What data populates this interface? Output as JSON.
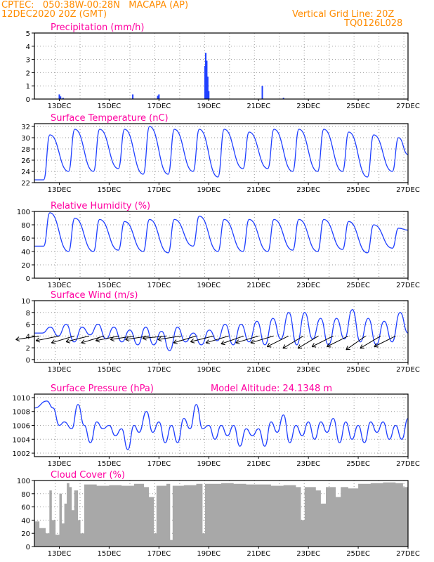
{
  "header": {
    "line1_left": "CPTEC:   050:38W-00:28N   MACAPA (AP)",
    "line2_left": "12DEC2020 20Z (GMT)",
    "line1_right": "Vertical Grid Line: 20Z",
    "line2_right": "TQ0126L028"
  },
  "colors": {
    "series": "#2040ff",
    "header": "#ff8c00",
    "title": "#ff00a0",
    "cloud": "#a8a8a8",
    "grid": "#9a9a9a"
  },
  "chart_data": [
    {
      "id": "precip",
      "type": "bar",
      "title": "Precipitation (mm/h)",
      "x_days": [
        "13DEC",
        "15DEC",
        "17DEC",
        "19DEC",
        "21DEC",
        "23DEC",
        "25DEC",
        "27DEC"
      ],
      "ylim": [
        0,
        5
      ],
      "yticks": [
        0,
        1,
        2,
        3,
        4,
        5
      ],
      "bars": [
        {
          "x": 13.0,
          "y": 0.35
        },
        {
          "x": 13.05,
          "y": 0.2
        },
        {
          "x": 13.15,
          "y": 0.1
        },
        {
          "x": 15.95,
          "y": 0.35
        },
        {
          "x": 16.95,
          "y": 0.25
        },
        {
          "x": 17.0,
          "y": 0.35
        },
        {
          "x": 18.85,
          "y": 2.5
        },
        {
          "x": 18.88,
          "y": 3.5
        },
        {
          "x": 18.92,
          "y": 2.9
        },
        {
          "x": 18.96,
          "y": 1.7
        },
        {
          "x": 19.0,
          "y": 0.6
        },
        {
          "x": 21.15,
          "y": 1.0
        },
        {
          "x": 22.0,
          "y": 0.1
        }
      ]
    },
    {
      "id": "temp",
      "type": "line",
      "title": "Surface Temperature (nC)",
      "ylim": [
        22,
        32.5
      ],
      "yticks": [
        22,
        24,
        26,
        28,
        30,
        32
      ],
      "day_max": [
        30.5,
        31.5,
        31.5,
        31.5,
        32.0,
        31.5,
        31.5,
        31.5,
        31.0,
        31.5,
        31.5,
        31.5,
        31.0,
        30.5,
        30.0
      ],
      "day_min": [
        22.5,
        24.0,
        24.0,
        24.5,
        23.5,
        23.5,
        24.0,
        23.0,
        24.5,
        24.5,
        24.0,
        24.0,
        24.0,
        23.0,
        24.0
      ]
    },
    {
      "id": "rh",
      "type": "line",
      "title": "Relative Humidity (%)",
      "ylim": [
        0,
        100
      ],
      "yticks": [
        0,
        20,
        40,
        60,
        80,
        100
      ],
      "day_max": [
        98,
        90,
        88,
        85,
        88,
        88,
        93,
        88,
        88,
        88,
        88,
        88,
        85,
        80,
        75
      ],
      "day_min": [
        48,
        40,
        40,
        42,
        40,
        38,
        48,
        40,
        40,
        40,
        42,
        40,
        43,
        38,
        45
      ]
    },
    {
      "id": "wind",
      "type": "line",
      "title": "Surface Wind (m/s)",
      "ylim": [
        -0.5,
        10
      ],
      "yticks": [
        0,
        2,
        4,
        6,
        8,
        10
      ],
      "speed": [
        4.5,
        4.5,
        5.5,
        4.0,
        6.0,
        3.0,
        5.5,
        4.2,
        6.0,
        3.5,
        5.5,
        3.0,
        5.0,
        2.5,
        5.5,
        2.5,
        4.8,
        1.5,
        5.5,
        3.0,
        4.5,
        2.5,
        5.0,
        3.2,
        6.0,
        2.5,
        6.0,
        3.0,
        6.5,
        2.5,
        7.0,
        3.5,
        8.0,
        2.5,
        8.0,
        3.5,
        7.0,
        2.5,
        7.0,
        3.5,
        8.5,
        3.0,
        7.0,
        2.5,
        6.5,
        3.0,
        8.0,
        4.5
      ],
      "arrows": [
        {
          "x": 12.2,
          "u": -1,
          "v": 0.15
        },
        {
          "x": 13.0,
          "u": -1,
          "v": 0.2
        },
        {
          "x": 13.6,
          "u": -1,
          "v": 0.3
        },
        {
          "x": 14.2,
          "u": -1,
          "v": 0.25
        },
        {
          "x": 14.8,
          "u": -1,
          "v": 0.3
        },
        {
          "x": 15.4,
          "u": -1,
          "v": 0.2
        },
        {
          "x": 16.0,
          "u": -1,
          "v": 0.15
        },
        {
          "x": 16.6,
          "u": -1,
          "v": 0.15
        },
        {
          "x": 17.3,
          "u": -1,
          "v": 0.1
        },
        {
          "x": 17.9,
          "u": -1,
          "v": 0.15
        },
        {
          "x": 18.5,
          "u": -1,
          "v": 0.3
        },
        {
          "x": 19.2,
          "u": -1,
          "v": 0.25
        },
        {
          "x": 19.8,
          "u": -1,
          "v": 0.3
        },
        {
          "x": 20.4,
          "u": -1,
          "v": 0.35
        },
        {
          "x": 21.0,
          "u": -1,
          "v": 0.3
        },
        {
          "x": 21.6,
          "u": -1,
          "v": 0.3
        },
        {
          "x": 22.2,
          "u": -1,
          "v": 0.5
        },
        {
          "x": 22.8,
          "u": -1,
          "v": 0.6
        },
        {
          "x": 23.4,
          "u": -1,
          "v": 0.6
        },
        {
          "x": 24.0,
          "u": -1,
          "v": 0.5
        },
        {
          "x": 24.6,
          "u": -1,
          "v": 0.5
        },
        {
          "x": 25.3,
          "u": -1,
          "v": 0.7
        },
        {
          "x": 25.9,
          "u": -1,
          "v": 0.6
        },
        {
          "x": 26.5,
          "u": -1,
          "v": 0.5
        }
      ]
    },
    {
      "id": "pres",
      "type": "line",
      "title": "Surface Pressure (hPa)",
      "extra_label": "Model Altitude: 24.1348 m",
      "ylim": [
        1001.5,
        1010.5
      ],
      "yticks": [
        1002,
        1004,
        1006,
        1008,
        1010
      ],
      "waves": [
        {
          "x": 12.0,
          "y": 1008.5
        },
        {
          "x": 12.5,
          "y": 1009.5
        },
        {
          "x": 12.75,
          "y": 1008.5
        },
        {
          "x": 13.0,
          "y": 1006.0
        },
        {
          "x": 13.2,
          "y": 1006.5
        },
        {
          "x": 13.5,
          "y": 1005.5
        },
        {
          "x": 13.75,
          "y": 1009.0
        },
        {
          "x": 14.0,
          "y": 1006.0
        },
        {
          "x": 14.25,
          "y": 1003.5
        },
        {
          "x": 14.5,
          "y": 1006.5
        },
        {
          "x": 14.75,
          "y": 1005.5
        },
        {
          "x": 15.0,
          "y": 1006.0
        },
        {
          "x": 15.25,
          "y": 1004.5
        },
        {
          "x": 15.5,
          "y": 1005.5
        },
        {
          "x": 15.75,
          "y": 1002.5
        },
        {
          "x": 16.0,
          "y": 1006.0
        },
        {
          "x": 16.2,
          "y": 1005.0
        },
        {
          "x": 16.5,
          "y": 1008.0
        },
        {
          "x": 16.75,
          "y": 1005.0
        },
        {
          "x": 17.0,
          "y": 1006.5
        },
        {
          "x": 17.25,
          "y": 1003.5
        },
        {
          "x": 17.5,
          "y": 1006.0
        },
        {
          "x": 17.75,
          "y": 1003.5
        },
        {
          "x": 18.0,
          "y": 1007.0
        },
        {
          "x": 18.25,
          "y": 1005.5
        },
        {
          "x": 18.5,
          "y": 1009.0
        },
        {
          "x": 18.75,
          "y": 1005.5
        },
        {
          "x": 19.0,
          "y": 1006.0
        },
        {
          "x": 19.25,
          "y": 1004.0
        },
        {
          "x": 19.5,
          "y": 1006.0
        },
        {
          "x": 19.75,
          "y": 1004.5
        },
        {
          "x": 20.0,
          "y": 1006.0
        },
        {
          "x": 20.25,
          "y": 1003.0
        },
        {
          "x": 20.5,
          "y": 1005.5
        },
        {
          "x": 20.75,
          "y": 1004.5
        },
        {
          "x": 21.0,
          "y": 1005.5
        },
        {
          "x": 21.25,
          "y": 1003.0
        },
        {
          "x": 21.5,
          "y": 1006.5
        },
        {
          "x": 21.75,
          "y": 1005.0
        },
        {
          "x": 22.0,
          "y": 1007.5
        },
        {
          "x": 22.25,
          "y": 1003.5
        },
        {
          "x": 22.5,
          "y": 1006.0
        },
        {
          "x": 22.75,
          "y": 1004.5
        },
        {
          "x": 23.0,
          "y": 1006.5
        },
        {
          "x": 23.25,
          "y": 1004.0
        },
        {
          "x": 23.5,
          "y": 1006.5
        },
        {
          "x": 23.75,
          "y": 1005.0
        },
        {
          "x": 24.0,
          "y": 1007.0
        },
        {
          "x": 24.25,
          "y": 1003.5
        },
        {
          "x": 24.5,
          "y": 1006.5
        },
        {
          "x": 24.75,
          "y": 1004.0
        },
        {
          "x": 25.0,
          "y": 1006.0
        },
        {
          "x": 25.25,
          "y": 1003.5
        },
        {
          "x": 25.5,
          "y": 1006.5
        },
        {
          "x": 25.75,
          "y": 1005.0
        },
        {
          "x": 26.0,
          "y": 1006.5
        },
        {
          "x": 26.25,
          "y": 1004.0
        },
        {
          "x": 26.5,
          "y": 1006.0
        },
        {
          "x": 26.75,
          "y": 1004.0
        },
        {
          "x": 27.0,
          "y": 1007.0
        }
      ]
    },
    {
      "id": "cloud",
      "type": "area",
      "title": "Cloud Cover (%)",
      "ylim": [
        0,
        100
      ],
      "yticks": [
        0,
        20,
        40,
        60,
        80,
        100
      ],
      "points": [
        {
          "x": 12.0,
          "y": 38
        },
        {
          "x": 12.2,
          "y": 28
        },
        {
          "x": 12.45,
          "y": 20
        },
        {
          "x": 12.6,
          "y": 85
        },
        {
          "x": 12.7,
          "y": 40
        },
        {
          "x": 12.85,
          "y": 18
        },
        {
          "x": 13.0,
          "y": 80
        },
        {
          "x": 13.1,
          "y": 35
        },
        {
          "x": 13.2,
          "y": 65
        },
        {
          "x": 13.3,
          "y": 96
        },
        {
          "x": 13.4,
          "y": 90
        },
        {
          "x": 13.5,
          "y": 55
        },
        {
          "x": 13.6,
          "y": 85
        },
        {
          "x": 13.75,
          "y": 40
        },
        {
          "x": 13.85,
          "y": 20
        },
        {
          "x": 14.0,
          "y": 94
        },
        {
          "x": 14.5,
          "y": 92
        },
        {
          "x": 15.0,
          "y": 93
        },
        {
          "x": 15.5,
          "y": 92
        },
        {
          "x": 16.0,
          "y": 95
        },
        {
          "x": 16.4,
          "y": 90
        },
        {
          "x": 16.6,
          "y": 75
        },
        {
          "x": 16.8,
          "y": 20
        },
        {
          "x": 16.9,
          "y": 92
        },
        {
          "x": 17.3,
          "y": 95
        },
        {
          "x": 17.45,
          "y": 10
        },
        {
          "x": 17.55,
          "y": 92
        },
        {
          "x": 18.0,
          "y": 93
        },
        {
          "x": 18.5,
          "y": 95
        },
        {
          "x": 18.75,
          "y": 20
        },
        {
          "x": 18.85,
          "y": 95
        },
        {
          "x": 19.5,
          "y": 96
        },
        {
          "x": 20.0,
          "y": 95
        },
        {
          "x": 20.5,
          "y": 94
        },
        {
          "x": 21.0,
          "y": 94
        },
        {
          "x": 21.5,
          "y": 92
        },
        {
          "x": 22.0,
          "y": 93
        },
        {
          "x": 22.5,
          "y": 90
        },
        {
          "x": 22.7,
          "y": 40
        },
        {
          "x": 22.85,
          "y": 90
        },
        {
          "x": 23.3,
          "y": 85
        },
        {
          "x": 23.5,
          "y": 65
        },
        {
          "x": 23.7,
          "y": 90
        },
        {
          "x": 24.1,
          "y": 75
        },
        {
          "x": 24.3,
          "y": 90
        },
        {
          "x": 24.6,
          "y": 88
        },
        {
          "x": 25.0,
          "y": 95
        },
        {
          "x": 25.5,
          "y": 96
        },
        {
          "x": 26.0,
          "y": 97
        },
        {
          "x": 26.5,
          "y": 96
        },
        {
          "x": 26.8,
          "y": 90
        },
        {
          "x": 27.0,
          "y": 55
        }
      ]
    }
  ]
}
